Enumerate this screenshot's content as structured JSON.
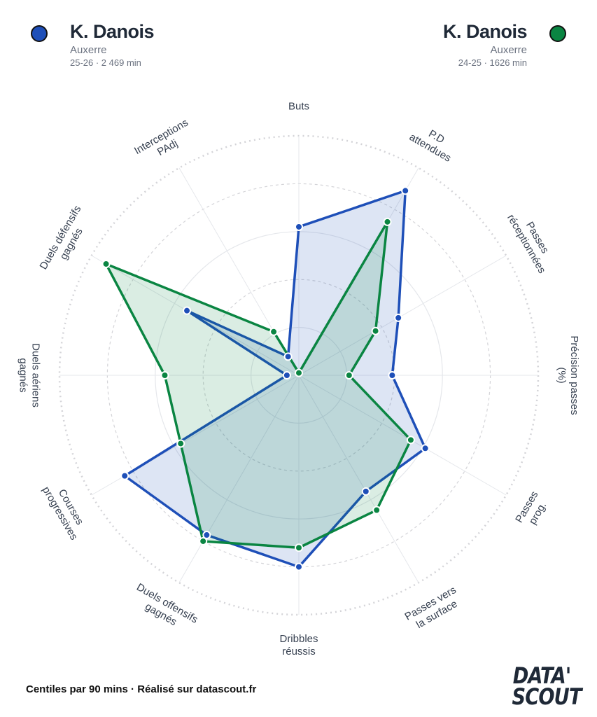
{
  "players": [
    {
      "name": "K. Danois",
      "club": "Auxerre",
      "meta": "25-26 · 2 469 min",
      "color": "#1e4fb8",
      "fill": "rgba(30,79,184,0.15)"
    },
    {
      "name": "K. Danois",
      "club": "Auxerre",
      "meta": "24-25 · 1626 min",
      "color": "#0a8542",
      "fill": "rgba(10,133,66,0.15)"
    }
  ],
  "footer": "Centiles par 90 mins · Réalisé sur datascout.fr",
  "logo": {
    "line1": "DATA'",
    "line2": "SCOUT"
  },
  "chart_data": {
    "type": "radar",
    "axes": [
      [
        "Buts"
      ],
      [
        "P.D",
        "attendues"
      ],
      [
        "Passes",
        "réceptionnées"
      ],
      [
        "Précision passes",
        "(%)"
      ],
      [
        "Passes",
        "prog."
      ],
      [
        "Passes vers",
        "la surface"
      ],
      [
        "Dribbles",
        "réussis"
      ],
      [
        "Duels offensifs",
        "gagnés"
      ],
      [
        "Courses",
        "progressives"
      ],
      [
        "Duels aériens",
        "gagnés"
      ],
      [
        "Duels défensifs",
        "gagnés"
      ],
      [
        "Interceptions",
        "PAdj"
      ]
    ],
    "range": [
      0,
      100
    ],
    "rings": [
      20,
      40,
      60,
      80,
      100
    ],
    "series": [
      {
        "name": "K. Danois 25-26",
        "values": [
          62,
          89,
          48,
          39,
          61,
          56,
          80,
          77,
          84,
          5,
          54,
          9
        ]
      },
      {
        "name": "K. Danois 24-25",
        "values": [
          1,
          74,
          37,
          21,
          54,
          65,
          72,
          80,
          57,
          56,
          93,
          21
        ]
      }
    ]
  }
}
